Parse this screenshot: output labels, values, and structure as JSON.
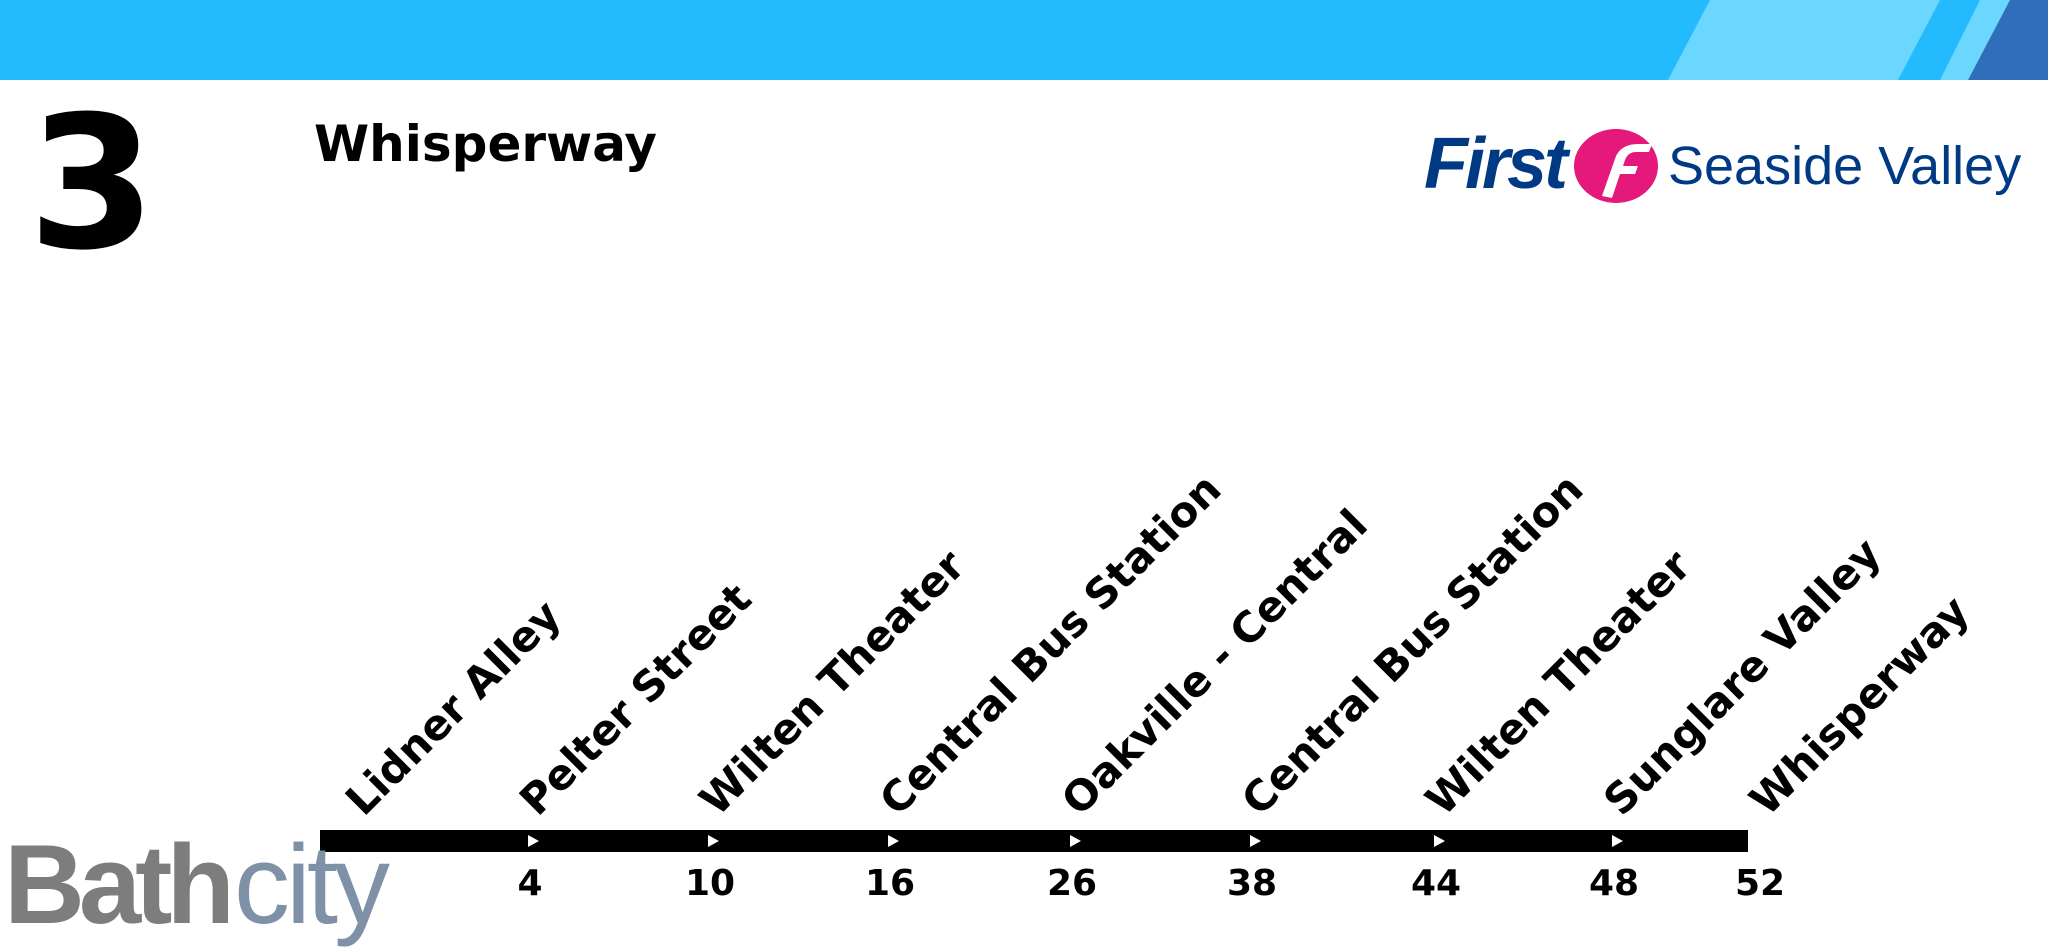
{
  "colors": {
    "header_bar": "#23bbfd",
    "operator_blue": "#003a84",
    "operator_magenta": "#e5187c",
    "route_line": "#000000",
    "brand_grey": "#7d7d7d",
    "brand_slate": "#7f91a7"
  },
  "route": {
    "number": "3",
    "destination": "Whisperway"
  },
  "operator": {
    "name": "First",
    "region": "Seaside Valley",
    "symbol_icon": "first-f-icon"
  },
  "stops": [
    {
      "name": "Lidner Alley",
      "minutes": ""
    },
    {
      "name": "Pelter Street",
      "minutes": "4"
    },
    {
      "name": "Wilten Theater",
      "minutes": "10"
    },
    {
      "name": "Central Bus Station",
      "minutes": "16"
    },
    {
      "name": "Oakville - Central",
      "minutes": "26"
    },
    {
      "name": "Central Bus Station",
      "minutes": "38"
    },
    {
      "name": "Wilten Theater",
      "minutes": "44"
    },
    {
      "name": "Sunglare Valley",
      "minutes": "48"
    },
    {
      "name": "Whisperway",
      "minutes": "52"
    }
  ],
  "branding": {
    "part1": "Bath",
    "part2": "city"
  }
}
